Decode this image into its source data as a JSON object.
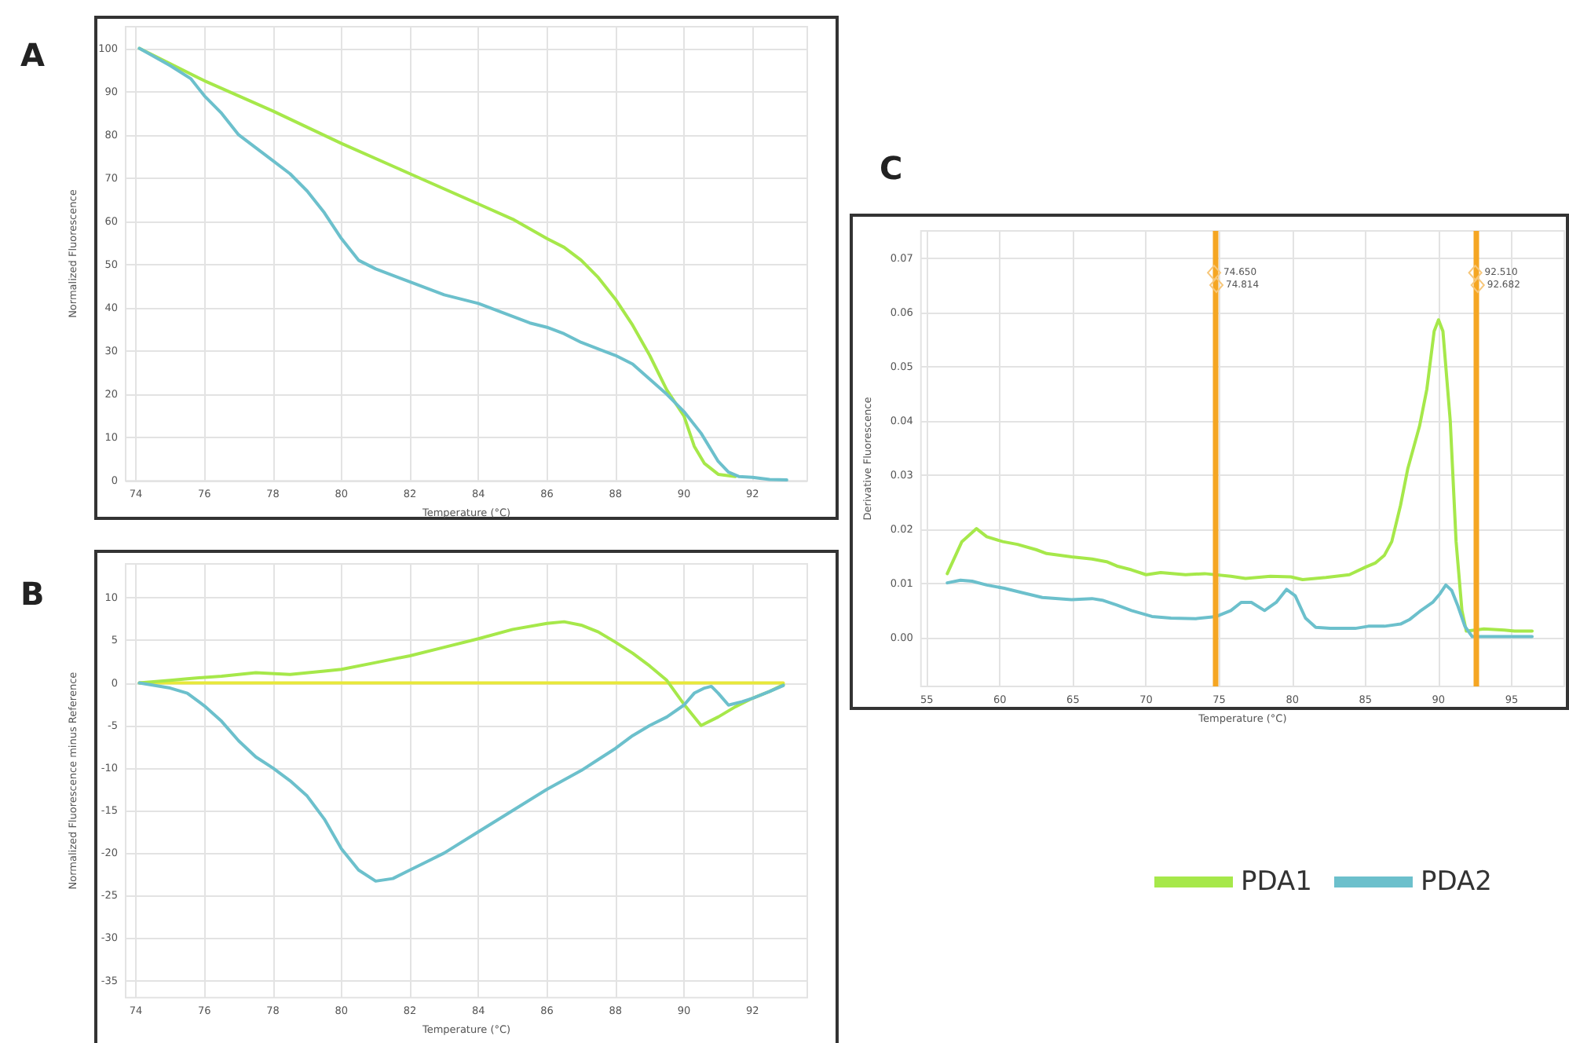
{
  "chart_data": [
    {
      "type": "line",
      "title": "A",
      "xlabel": "Temperature (°C)",
      "ylabel": "Normalized Fluorescence",
      "xlim": [
        73.7,
        93.6
      ],
      "xticks": [
        74,
        76,
        78,
        80,
        82,
        84,
        86,
        88,
        90,
        92
      ],
      "ylim": [
        0,
        105
      ],
      "yticks": [
        0,
        10,
        20,
        30,
        40,
        50,
        60,
        70,
        80,
        90,
        100
      ],
      "grid": true,
      "marker": "none",
      "line_style": "solid",
      "series": [
        {
          "color": "#a6e84a",
          "x": [
            74.1,
            76,
            78,
            80,
            82,
            84,
            85,
            86,
            86.5,
            87,
            87.5,
            88,
            88.5,
            89,
            89.5,
            90,
            90.3,
            90.6,
            91,
            91.5
          ],
          "values": [
            100,
            92.5,
            85.5,
            78,
            71,
            64,
            60.5,
            56,
            54,
            51,
            47,
            42,
            36,
            29,
            21,
            15,
            8,
            4,
            1.5,
            1
          ]
        },
        {
          "color": "#6cc0cc",
          "x": [
            74.1,
            75,
            75.6,
            76,
            76.5,
            77,
            77.5,
            78,
            78.5,
            79,
            79.5,
            80,
            80.5,
            81,
            82,
            83,
            84,
            85,
            85.5,
            86,
            86.5,
            87,
            88,
            88.5,
            89,
            89.5,
            90,
            90.5,
            91,
            91.3,
            91.6,
            92,
            92.5,
            93
          ],
          "values": [
            100,
            96,
            93,
            89,
            85,
            80,
            77,
            74,
            71,
            67,
            62,
            56,
            51,
            49,
            46,
            43,
            41,
            38,
            36.5,
            35.5,
            34,
            32,
            29,
            27,
            23.5,
            20,
            16,
            11,
            4.5,
            2,
            1,
            0.8,
            0.3,
            0.2
          ]
        }
      ]
    },
    {
      "type": "line",
      "title": "B",
      "xlabel": "Temperature (°C)",
      "ylabel": "Normalized Fluorescence minus Reference",
      "xlim": [
        73.7,
        93.6
      ],
      "xticks": [
        74,
        76,
        78,
        80,
        82,
        84,
        86,
        88,
        90,
        92
      ],
      "ylim": [
        -37,
        14
      ],
      "yticks": [
        -35,
        -30,
        -25,
        -20,
        -15,
        -10,
        -5,
        0,
        5,
        10
      ],
      "grid": true,
      "marker": "none",
      "line_style": "solid",
      "series": [
        {
          "color": "#e8e83a",
          "x": [
            74.1,
            92.9
          ],
          "values": [
            0,
            0
          ]
        },
        {
          "color": "#a6e84a",
          "x": [
            74.1,
            75,
            75.5,
            76.5,
            77.5,
            78.5,
            79.5,
            80,
            81,
            82,
            83,
            84,
            85,
            86,
            86.5,
            87,
            87.5,
            88,
            88.5,
            89,
            89.5,
            90,
            90.5,
            91,
            91.5,
            92,
            92.5,
            92.9
          ],
          "values": [
            0,
            0.3,
            0.5,
            0.8,
            1.2,
            1,
            1.4,
            1.6,
            2.4,
            3.2,
            4.2,
            5.2,
            6.3,
            7,
            7.2,
            6.8,
            6,
            4.8,
            3.5,
            2,
            0.3,
            -2.5,
            -5,
            -4,
            -2.8,
            -1.8,
            -1,
            -0.2
          ]
        },
        {
          "color": "#6cc0cc",
          "x": [
            74.1,
            75,
            75.5,
            76,
            76.5,
            77,
            77.5,
            78,
            78.5,
            79,
            79.5,
            80,
            80.5,
            81,
            81.5,
            82,
            82.5,
            83,
            84,
            85,
            86,
            87,
            87.5,
            88,
            88.5,
            89,
            89.5,
            90,
            90.3,
            90.6,
            90.8,
            91,
            91.3,
            91.7,
            92,
            92.5,
            92.9
          ],
          "values": [
            0,
            -0.6,
            -1.2,
            -2.7,
            -4.5,
            -6.8,
            -8.7,
            -10,
            -11.5,
            -13.3,
            -16,
            -19.5,
            -22,
            -23.3,
            -23,
            -22,
            -21,
            -20,
            -17.5,
            -15,
            -12.5,
            -10.3,
            -9,
            -7.7,
            -6.2,
            -5,
            -4,
            -2.6,
            -1.2,
            -0.6,
            -0.4,
            -1.2,
            -2.6,
            -2.2,
            -1.8,
            -1,
            -0.3
          ]
        }
      ]
    },
    {
      "type": "line",
      "title": "C",
      "xlabel": "Temperature (°C)",
      "ylabel": "Derivative Fluorescence",
      "xlim": [
        54.6,
        98.6
      ],
      "xticks": [
        55,
        60,
        65,
        70,
        75,
        80,
        85,
        90,
        95
      ],
      "ylim": [
        -0.009,
        0.075
      ],
      "yticks": [
        {
          "value": 0,
          "label": "0.00"
        },
        0.01,
        0.02,
        0.03,
        0.04,
        0.05,
        0.06,
        0.07
      ],
      "grid": true,
      "marker": "none",
      "line_style": "solid",
      "legend": "bottom",
      "series": [
        {
          "name": "PDA1",
          "color": "#a6e84a",
          "x": [
            56.4,
            57.4,
            58.4,
            59.1,
            60.2,
            61.2,
            62.5,
            63.2,
            64.9,
            66.3,
            67.3,
            68,
            69,
            70,
            71,
            72.7,
            74,
            75.8,
            76.8,
            78.5,
            79.9,
            80.7,
            82.3,
            83.9,
            85,
            85.7,
            86.3,
            86.8,
            87.4,
            87.9,
            88.7,
            89.2,
            89.7,
            90,
            90.3,
            90.8,
            91.2,
            91.6,
            91.9,
            92.5,
            93.1,
            94.5,
            95.2,
            96.4
          ],
          "values": [
            0.0118,
            0.0177,
            0.0201,
            0.0186,
            0.0177,
            0.0172,
            0.0162,
            0.0155,
            0.0149,
            0.0145,
            0.014,
            0.0132,
            0.0125,
            0.0116,
            0.012,
            0.0116,
            0.0118,
            0.0113,
            0.0109,
            0.0113,
            0.0112,
            0.0107,
            0.0111,
            0.0116,
            0.013,
            0.0138,
            0.0152,
            0.0177,
            0.0244,
            0.0312,
            0.039,
            0.0458,
            0.0565,
            0.0586,
            0.0565,
            0.04,
            0.0177,
            0.005,
            0.0012,
            0.0014,
            0.0016,
            0.0014,
            0.0012,
            0.0012
          ]
        },
        {
          "name": "PDA2",
          "color": "#6cc0cc",
          "x": [
            56.4,
            57.3,
            58.1,
            59.1,
            60.3,
            61.5,
            62.9,
            64.9,
            66.3,
            67,
            68,
            69,
            70.4,
            71.7,
            73.4,
            74.8,
            75.8,
            76.5,
            77.2,
            78.1,
            78.9,
            79.6,
            80.2,
            80.9,
            81.6,
            82.6,
            84.3,
            85.2,
            86.3,
            87.4,
            88,
            88.7,
            89.6,
            90.1,
            90.5,
            90.9,
            91.3,
            91.8,
            92.3,
            93.5,
            96.4
          ],
          "values": [
            0.0101,
            0.0106,
            0.0104,
            0.0097,
            0.0091,
            0.0083,
            0.0074,
            0.007,
            0.0072,
            0.0069,
            0.006,
            0.005,
            0.0039,
            0.0036,
            0.0035,
            0.0039,
            0.005,
            0.0065,
            0.0065,
            0.005,
            0.0065,
            0.0089,
            0.0077,
            0.0036,
            0.0019,
            0.0017,
            0.0017,
            0.0021,
            0.0021,
            0.0025,
            0.0033,
            0.0048,
            0.0065,
            0.0081,
            0.0097,
            0.0087,
            0.006,
            0.0021,
            0.0002,
            0.0002,
            0.0002
          ]
        }
      ],
      "ref_lines": [
        {
          "axis": "x",
          "value": 74.7,
          "color": "#f5a623"
        },
        {
          "axis": "x",
          "value": 92.6,
          "color": "#f5a623"
        }
      ],
      "annotations": [
        {
          "text": "74.650",
          "x": 74.65,
          "y": 0.0673
        },
        {
          "text": "74.814",
          "x": 74.81,
          "y": 0.065
        },
        {
          "text": "92.510",
          "x": 92.51,
          "y": 0.0673
        },
        {
          "text": "92.682",
          "x": 92.68,
          "y": 0.065
        }
      ]
    }
  ]
}
